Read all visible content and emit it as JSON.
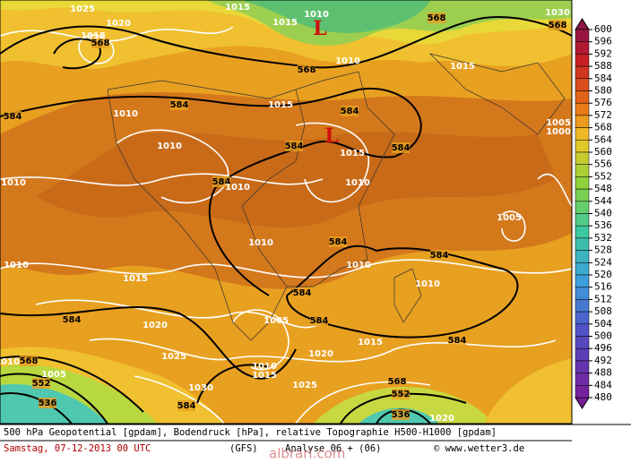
{
  "map": {
    "contour_labels": [
      "584",
      "584",
      "584",
      "584",
      "584",
      "584",
      "584",
      "584",
      "584",
      "584",
      "584",
      "584",
      "584",
      "568",
      "568",
      "568",
      "568",
      "568",
      "568",
      "552",
      "552",
      "536",
      "536",
      "1025",
      "1020",
      "1015",
      "1015",
      "1015",
      "1010",
      "1010",
      "1010",
      "1015",
      "1010",
      "1010",
      "1010",
      "1015",
      "1010",
      "1010",
      "1010",
      "1015",
      "1010",
      "1010",
      "1020",
      "1005",
      "1025",
      "1010",
      "1015",
      "1030",
      "1025",
      "1020",
      "1015",
      "1005",
      "1005",
      "1000",
      "1020",
      "1015",
      "1030",
      "1010",
      "1005"
    ],
    "lows": [
      "L",
      "L"
    ]
  },
  "colorbar": {
    "ticks": [
      600,
      596,
      592,
      588,
      584,
      580,
      576,
      572,
      568,
      564,
      560,
      556,
      552,
      548,
      544,
      540,
      536,
      532,
      528,
      524,
      520,
      516,
      512,
      508,
      504,
      500,
      496,
      492,
      488,
      484,
      480
    ]
  },
  "footer": {
    "line1": "500 hPa Geopotential [gpdam], Bodendruck [hPa], relative Topographie H500-H1000 [gpdam]",
    "date": "Samstag, 07-12-2013  00 UTC",
    "model": "(GFS)",
    "run": "Analyse 06 + (06)",
    "watermark": "albrari.com",
    "credit": "© www.wetter3.de"
  }
}
